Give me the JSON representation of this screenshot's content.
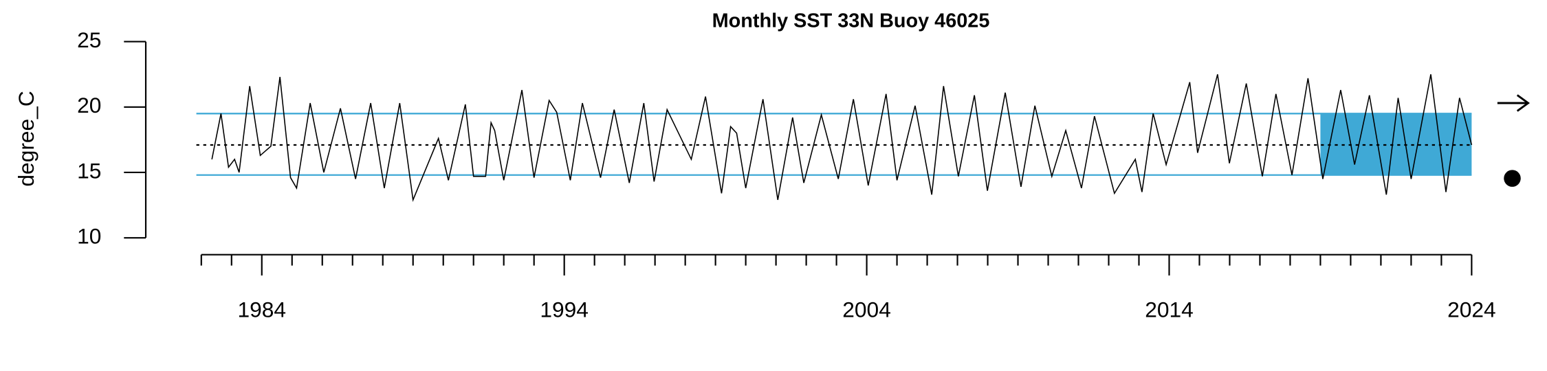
{
  "chart_data": {
    "type": "line",
    "title": "Monthly SST 33N Buoy 46025",
    "ylabel": "degree_C",
    "xlim": [
      1982,
      2024
    ],
    "xticks": [
      1984,
      1994,
      2004,
      2014,
      2024
    ],
    "xminor_ticks": [
      1982,
      1983,
      1985,
      1986,
      1987,
      1988,
      1989,
      1990,
      1991,
      1992,
      1993,
      1995,
      1996,
      1997,
      1998,
      1999,
      2000,
      2001,
      2002,
      2003,
      2005,
      2006,
      2007,
      2008,
      2009,
      2010,
      2011,
      2012,
      2013,
      2015,
      2016,
      2017,
      2018,
      2019,
      2020,
      2021,
      2022,
      2023
    ],
    "ylim": [
      10,
      25
    ],
    "yticks": [
      10,
      15,
      20,
      25
    ],
    "mean": 17.1,
    "upper": 19.5,
    "lower": 14.8,
    "band_color": "#3fa9d6",
    "shade_x": [
      2019,
      2024
    ],
    "series": [
      {
        "color": "#000000",
        "x": [
          1982.35,
          1982.65,
          1982.9,
          1983.1,
          1983.25,
          1983.6,
          1983.95,
          1984.3,
          1984.6,
          1984.95,
          1985.15,
          1985.6,
          1986.05,
          1986.6,
          1987.1,
          1987.6,
          1988.05,
          1988.56,
          1989.0,
          1989.84,
          1990.17,
          1990.73,
          1991.0,
          1991.4,
          1991.58,
          1991.7,
          1992.0,
          1992.6,
          1993.0,
          1993.5,
          1993.75,
          1994.2,
          1994.6,
          1995.2,
          1995.65,
          1996.15,
          1996.63,
          1996.97,
          1997.4,
          1998.2,
          1998.67,
          1999.2,
          1999.5,
          1999.7,
          2000.0,
          2000.57,
          2001.06,
          2001.55,
          2001.92,
          2002.5,
          2003.06,
          2003.56,
          2004.05,
          2004.64,
          2005.0,
          2005.6,
          2006.15,
          2006.54,
          2007.03,
          2007.56,
          2007.99,
          2008.58,
          2009.1,
          2009.56,
          2010.12,
          2010.58,
          2011.1,
          2011.53,
          2012.19,
          2012.88,
          2013.1,
          2013.47,
          2013.9,
          2014.68,
          2014.94,
          2015.6,
          2015.99,
          2016.55,
          2017.08,
          2017.53,
          2018.06,
          2018.59,
          2019.08,
          2019.67,
          2020.13,
          2020.62,
          2021.18,
          2021.57,
          2022.0,
          2022.65,
          2023.15,
          2023.6,
          2024.0
        ],
        "values": [
          16.0,
          19.5,
          15.4,
          16.0,
          15.0,
          21.6,
          16.3,
          17.0,
          22.3,
          14.6,
          13.8,
          20.3,
          15.0,
          19.9,
          14.5,
          20.3,
          13.8,
          20.3,
          12.9,
          17.6,
          14.4,
          20.2,
          14.7,
          14.7,
          18.8,
          18.2,
          14.4,
          21.3,
          14.6,
          20.5,
          19.6,
          14.4,
          20.3,
          14.6,
          19.8,
          14.2,
          20.3,
          14.3,
          19.8,
          16.0,
          20.8,
          13.4,
          18.5,
          18.0,
          13.8,
          20.6,
          12.9,
          19.2,
          14.2,
          19.4,
          14.5,
          20.6,
          14.0,
          21.0,
          14.4,
          20.1,
          13.3,
          21.6,
          14.7,
          20.9,
          13.6,
          21.1,
          13.9,
          20.1,
          14.7,
          18.2,
          13.8,
          19.3,
          13.4,
          16.0,
          13.5,
          19.5,
          15.6,
          21.9,
          16.5,
          22.5,
          15.7,
          21.8,
          14.7,
          21.0,
          14.8,
          22.2,
          14.5,
          21.3,
          15.6,
          20.9,
          13.3,
          20.7,
          14.5,
          22.5,
          13.5,
          20.7,
          17.1
        ]
      }
    ]
  }
}
